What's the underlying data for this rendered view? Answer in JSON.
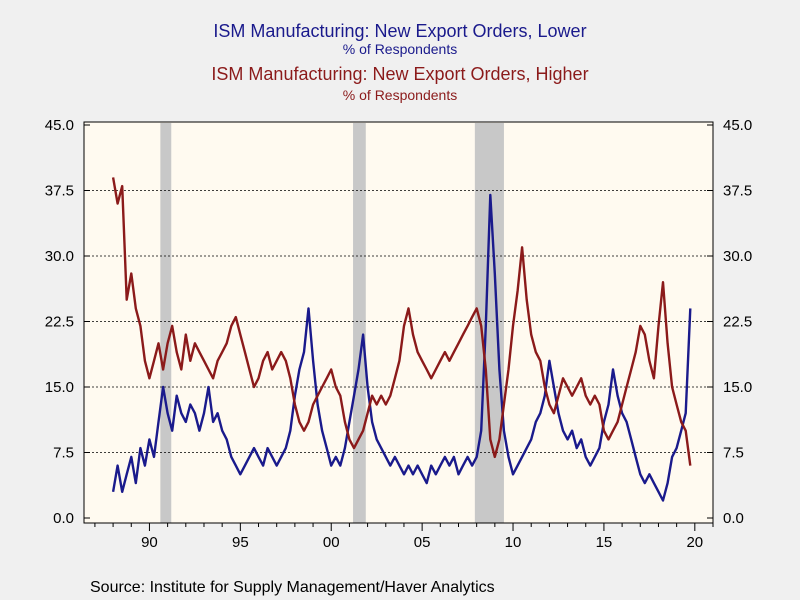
{
  "chart_data": {
    "type": "line",
    "titles": [
      {
        "text": "ISM Manufacturing: New Export Orders, Lower",
        "sub": "% of Respondents",
        "color": "#1a1a8c"
      },
      {
        "text": "ISM Manufacturing: New Export Orders, Higher",
        "sub": "% of Respondents",
        "color": "#8b1a1a"
      }
    ],
    "source": "Source:  Institute for Supply Management/Haver Analytics",
    "x_range": [
      1986.4,
      2021.0
    ],
    "x_ticks": [
      {
        "x": 1990,
        "label": "90"
      },
      {
        "x": 1995,
        "label": "95"
      },
      {
        "x": 2000,
        "label": "00"
      },
      {
        "x": 2005,
        "label": "05"
      },
      {
        "x": 2010,
        "label": "10"
      },
      {
        "x": 2015,
        "label": "15"
      },
      {
        "x": 2020,
        "label": "20"
      }
    ],
    "ylim": [
      0,
      45
    ],
    "y_ticks": [
      0,
      7.5,
      15,
      22.5,
      30,
      37.5,
      45
    ],
    "y_tick_labels": [
      "0.0",
      "7.5",
      "15.0",
      "22.5",
      "30.0",
      "37.5",
      "45.0"
    ],
    "grid": "horizontal dashed",
    "recessions": [
      [
        1990.6,
        1991.2
      ],
      [
        2001.2,
        2001.9
      ],
      [
        2007.9,
        2009.5
      ]
    ],
    "series": [
      {
        "color": "#1a1a8c",
        "points": [
          [
            1988.0,
            3
          ],
          [
            1988.25,
            6
          ],
          [
            1988.5,
            3
          ],
          [
            1988.75,
            5
          ],
          [
            1989.0,
            7
          ],
          [
            1989.25,
            4
          ],
          [
            1989.5,
            8
          ],
          [
            1989.75,
            6
          ],
          [
            1990.0,
            9
          ],
          [
            1990.25,
            7
          ],
          [
            1990.5,
            11
          ],
          [
            1990.75,
            15
          ],
          [
            1991.0,
            12
          ],
          [
            1991.25,
            10
          ],
          [
            1991.5,
            14
          ],
          [
            1991.75,
            12
          ],
          [
            1992.0,
            11
          ],
          [
            1992.25,
            13
          ],
          [
            1992.5,
            12
          ],
          [
            1992.75,
            10
          ],
          [
            1993.0,
            12
          ],
          [
            1993.25,
            15
          ],
          [
            1993.5,
            11
          ],
          [
            1993.75,
            12
          ],
          [
            1994.0,
            10
          ],
          [
            1994.25,
            9
          ],
          [
            1994.5,
            7
          ],
          [
            1994.75,
            6
          ],
          [
            1995.0,
            5
          ],
          [
            1995.25,
            6
          ],
          [
            1995.5,
            7
          ],
          [
            1995.75,
            8
          ],
          [
            1996.0,
            7
          ],
          [
            1996.25,
            6
          ],
          [
            1996.5,
            8
          ],
          [
            1996.75,
            7
          ],
          [
            1997.0,
            6
          ],
          [
            1997.25,
            7
          ],
          [
            1997.5,
            8
          ],
          [
            1997.75,
            10
          ],
          [
            1998.0,
            14
          ],
          [
            1998.25,
            17
          ],
          [
            1998.5,
            19
          ],
          [
            1998.75,
            24
          ],
          [
            1999.0,
            18
          ],
          [
            1999.25,
            13
          ],
          [
            1999.5,
            10
          ],
          [
            1999.75,
            8
          ],
          [
            2000.0,
            6
          ],
          [
            2000.25,
            7
          ],
          [
            2000.5,
            6
          ],
          [
            2000.75,
            8
          ],
          [
            2001.0,
            11
          ],
          [
            2001.25,
            14
          ],
          [
            2001.5,
            17
          ],
          [
            2001.75,
            21
          ],
          [
            2002.0,
            15
          ],
          [
            2002.25,
            11
          ],
          [
            2002.5,
            9
          ],
          [
            2002.75,
            8
          ],
          [
            2003.0,
            7
          ],
          [
            2003.25,
            6
          ],
          [
            2003.5,
            7
          ],
          [
            2003.75,
            6
          ],
          [
            2004.0,
            5
          ],
          [
            2004.25,
            6
          ],
          [
            2004.5,
            5
          ],
          [
            2004.75,
            6
          ],
          [
            2005.0,
            5
          ],
          [
            2005.25,
            4
          ],
          [
            2005.5,
            6
          ],
          [
            2005.75,
            5
          ],
          [
            2006.0,
            6
          ],
          [
            2006.25,
            7
          ],
          [
            2006.5,
            6
          ],
          [
            2006.75,
            7
          ],
          [
            2007.0,
            5
          ],
          [
            2007.25,
            6
          ],
          [
            2007.5,
            7
          ],
          [
            2007.75,
            6
          ],
          [
            2008.0,
            7
          ],
          [
            2008.25,
            10
          ],
          [
            2008.5,
            22
          ],
          [
            2008.75,
            37
          ],
          [
            2009.0,
            28
          ],
          [
            2009.25,
            17
          ],
          [
            2009.5,
            10
          ],
          [
            2009.75,
            7
          ],
          [
            2010.0,
            5
          ],
          [
            2010.25,
            6
          ],
          [
            2010.5,
            7
          ],
          [
            2010.75,
            8
          ],
          [
            2011.0,
            9
          ],
          [
            2011.25,
            11
          ],
          [
            2011.5,
            12
          ],
          [
            2011.75,
            14
          ],
          [
            2012.0,
            18
          ],
          [
            2012.25,
            15
          ],
          [
            2012.5,
            12
          ],
          [
            2012.75,
            10
          ],
          [
            2013.0,
            9
          ],
          [
            2013.25,
            10
          ],
          [
            2013.5,
            8
          ],
          [
            2013.75,
            9
          ],
          [
            2014.0,
            7
          ],
          [
            2014.25,
            6
          ],
          [
            2014.5,
            7
          ],
          [
            2014.75,
            8
          ],
          [
            2015.0,
            11
          ],
          [
            2015.25,
            13
          ],
          [
            2015.5,
            17
          ],
          [
            2015.75,
            14
          ],
          [
            2016.0,
            12
          ],
          [
            2016.25,
            11
          ],
          [
            2016.5,
            9
          ],
          [
            2016.75,
            7
          ],
          [
            2017.0,
            5
          ],
          [
            2017.25,
            4
          ],
          [
            2017.5,
            5
          ],
          [
            2017.75,
            4
          ],
          [
            2018.0,
            3
          ],
          [
            2018.25,
            2
          ],
          [
            2018.5,
            4
          ],
          [
            2018.75,
            7
          ],
          [
            2019.0,
            8
          ],
          [
            2019.25,
            10
          ],
          [
            2019.5,
            12
          ],
          [
            2019.75,
            24
          ]
        ]
      },
      {
        "color": "#8b1a1a",
        "points": [
          [
            1988.0,
            39
          ],
          [
            1988.25,
            36
          ],
          [
            1988.5,
            38
          ],
          [
            1988.75,
            25
          ],
          [
            1989.0,
            28
          ],
          [
            1989.25,
            24
          ],
          [
            1989.5,
            22
          ],
          [
            1989.75,
            18
          ],
          [
            1990.0,
            16
          ],
          [
            1990.25,
            18
          ],
          [
            1990.5,
            20
          ],
          [
            1990.75,
            17
          ],
          [
            1991.0,
            20
          ],
          [
            1991.25,
            22
          ],
          [
            1991.5,
            19
          ],
          [
            1991.75,
            17
          ],
          [
            1992.0,
            21
          ],
          [
            1992.25,
            18
          ],
          [
            1992.5,
            20
          ],
          [
            1992.75,
            19
          ],
          [
            1993.0,
            18
          ],
          [
            1993.25,
            17
          ],
          [
            1993.5,
            16
          ],
          [
            1993.75,
            18
          ],
          [
            1994.0,
            19
          ],
          [
            1994.25,
            20
          ],
          [
            1994.5,
            22
          ],
          [
            1994.75,
            23
          ],
          [
            1995.0,
            21
          ],
          [
            1995.25,
            19
          ],
          [
            1995.5,
            17
          ],
          [
            1995.75,
            15
          ],
          [
            1996.0,
            16
          ],
          [
            1996.25,
            18
          ],
          [
            1996.5,
            19
          ],
          [
            1996.75,
            17
          ],
          [
            1997.0,
            18
          ],
          [
            1997.25,
            19
          ],
          [
            1997.5,
            18
          ],
          [
            1997.75,
            16
          ],
          [
            1998.0,
            13
          ],
          [
            1998.25,
            11
          ],
          [
            1998.5,
            10
          ],
          [
            1998.75,
            11
          ],
          [
            1999.0,
            13
          ],
          [
            1999.25,
            14
          ],
          [
            1999.5,
            15
          ],
          [
            1999.75,
            16
          ],
          [
            2000.0,
            17
          ],
          [
            2000.25,
            15
          ],
          [
            2000.5,
            14
          ],
          [
            2000.75,
            11
          ],
          [
            2001.0,
            9
          ],
          [
            2001.25,
            8
          ],
          [
            2001.5,
            9
          ],
          [
            2001.75,
            10
          ],
          [
            2002.0,
            12
          ],
          [
            2002.25,
            14
          ],
          [
            2002.5,
            13
          ],
          [
            2002.75,
            14
          ],
          [
            2003.0,
            13
          ],
          [
            2003.25,
            14
          ],
          [
            2003.5,
            16
          ],
          [
            2003.75,
            18
          ],
          [
            2004.0,
            22
          ],
          [
            2004.25,
            24
          ],
          [
            2004.5,
            21
          ],
          [
            2004.75,
            19
          ],
          [
            2005.0,
            18
          ],
          [
            2005.25,
            17
          ],
          [
            2005.5,
            16
          ],
          [
            2005.75,
            17
          ],
          [
            2006.0,
            18
          ],
          [
            2006.25,
            19
          ],
          [
            2006.5,
            18
          ],
          [
            2006.75,
            19
          ],
          [
            2007.0,
            20
          ],
          [
            2007.25,
            21
          ],
          [
            2007.5,
            22
          ],
          [
            2007.75,
            23
          ],
          [
            2008.0,
            24
          ],
          [
            2008.25,
            22
          ],
          [
            2008.5,
            17
          ],
          [
            2008.75,
            9
          ],
          [
            2009.0,
            7
          ],
          [
            2009.25,
            9
          ],
          [
            2009.5,
            13
          ],
          [
            2009.75,
            17
          ],
          [
            2010.0,
            22
          ],
          [
            2010.25,
            26
          ],
          [
            2010.5,
            31
          ],
          [
            2010.75,
            25
          ],
          [
            2011.0,
            21
          ],
          [
            2011.25,
            19
          ],
          [
            2011.5,
            18
          ],
          [
            2011.75,
            15
          ],
          [
            2012.0,
            13
          ],
          [
            2012.25,
            12
          ],
          [
            2012.5,
            14
          ],
          [
            2012.75,
            16
          ],
          [
            2013.0,
            15
          ],
          [
            2013.25,
            14
          ],
          [
            2013.5,
            15
          ],
          [
            2013.75,
            16
          ],
          [
            2014.0,
            14
          ],
          [
            2014.25,
            13
          ],
          [
            2014.5,
            14
          ],
          [
            2014.75,
            13
          ],
          [
            2015.0,
            10
          ],
          [
            2015.25,
            9
          ],
          [
            2015.5,
            10
          ],
          [
            2015.75,
            11
          ],
          [
            2016.0,
            13
          ],
          [
            2016.25,
            15
          ],
          [
            2016.5,
            17
          ],
          [
            2016.75,
            19
          ],
          [
            2017.0,
            22
          ],
          [
            2017.25,
            21
          ],
          [
            2017.5,
            18
          ],
          [
            2017.75,
            16
          ],
          [
            2018.0,
            22
          ],
          [
            2018.25,
            27
          ],
          [
            2018.5,
            20
          ],
          [
            2018.75,
            15
          ],
          [
            2019.0,
            13
          ],
          [
            2019.25,
            11
          ],
          [
            2019.5,
            10
          ],
          [
            2019.75,
            6
          ]
        ]
      }
    ]
  }
}
